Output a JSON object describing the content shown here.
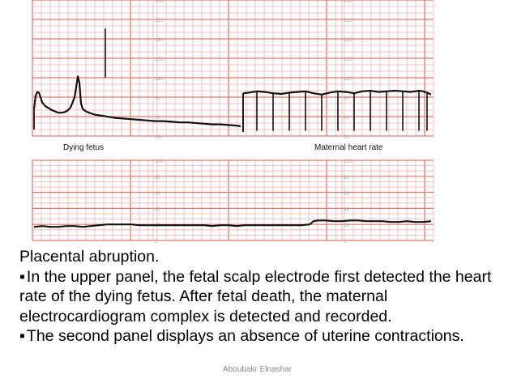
{
  "chart_data": [
    {
      "type": "line",
      "panel": "upper",
      "y_ticks": [
        240,
        210,
        180,
        150,
        120,
        90,
        60,
        30
      ],
      "ylim": [
        30,
        240
      ],
      "grid": true,
      "labels": {
        "left": "Dying fetus",
        "right": "Maternal heart rate"
      },
      "series": [
        {
          "segment": "fetal",
          "x": [
            0,
            2,
            4,
            6,
            8,
            10,
            14,
            18,
            22,
            26,
            30,
            34,
            38,
            42,
            45,
            47,
            50,
            52,
            54,
            56,
            58,
            60,
            62,
            64,
            66,
            68,
            70,
            75,
            80,
            86,
            90,
            95,
            100,
            110,
            120,
            130,
            140,
            150,
            160,
            170,
            180,
            190,
            200,
            210,
            220,
            230,
            240,
            250,
            255
          ],
          "y": [
            72,
            92,
            98,
            97,
            90,
            82,
            76,
            73,
            70,
            68,
            66,
            66,
            67,
            70,
            74,
            80,
            90,
            105,
            122,
            112,
            80,
            72,
            70,
            68,
            67,
            66,
            65,
            63,
            62,
            61,
            60,
            59,
            58,
            57,
            56,
            55,
            54,
            53,
            53,
            52,
            51,
            51,
            50,
            49,
            48,
            48,
            47,
            46,
            45
          ]
        },
        {
          "segment": "maternal",
          "x": [
            258,
            265,
            275,
            285,
            295,
            305,
            315,
            325,
            335,
            345,
            355,
            365,
            375,
            385,
            395,
            405,
            415,
            425,
            435,
            445,
            455,
            465,
            475,
            480,
            485,
            490
          ],
          "y": [
            96,
            97,
            99,
            98,
            96,
            95,
            97,
            98,
            99,
            96,
            94,
            97,
            99,
            98,
            96,
            99,
            100,
            98,
            99,
            100,
            99,
            98,
            100,
            99,
            97,
            94
          ]
        }
      ]
    },
    {
      "type": "line",
      "panel": "lower",
      "y_ticks": [
        100,
        80,
        60,
        40,
        20,
        0
      ],
      "ylim": [
        0,
        100
      ],
      "grid": true,
      "series": [
        {
          "x": [
            0,
            10,
            20,
            30,
            40,
            50,
            60,
            70,
            80,
            90,
            100,
            110,
            120,
            130,
            140,
            150,
            160,
            170,
            180,
            190,
            200,
            210,
            220,
            230,
            240,
            250,
            260,
            270,
            280,
            290,
            300,
            310,
            320,
            330,
            340,
            345,
            350,
            360,
            370,
            380,
            390,
            400,
            410,
            420,
            430,
            440,
            450,
            460,
            470,
            480,
            490
          ],
          "y": [
            17,
            18,
            17,
            17,
            18,
            18,
            17,
            18,
            19,
            20,
            20,
            20,
            20,
            19,
            19,
            19,
            19,
            19,
            19,
            19,
            19,
            19,
            18,
            19,
            19,
            18,
            19,
            19,
            19,
            19,
            19,
            19,
            19,
            19,
            20,
            24,
            25,
            25,
            24,
            24,
            25,
            25,
            24,
            24,
            24,
            23,
            23,
            24,
            23,
            23,
            24
          ]
        }
      ]
    }
  ],
  "text": {
    "line1": "Placental abruption.",
    "bullet1": "In the upper panel, the fetal scalp electrode first detected the heart rate of the dying fetus. After fetal death, the maternal electrocardiogram complex is detected and recorded.",
    "bullet2": "The second panel displays an absence of uterine contractions."
  },
  "footer": "Aboubakr Elnashar",
  "colors": {
    "grid": "#e8786a",
    "grid_minor": "#f3b3ab",
    "trace": "#111111",
    "tick": "#b0a8a2"
  }
}
